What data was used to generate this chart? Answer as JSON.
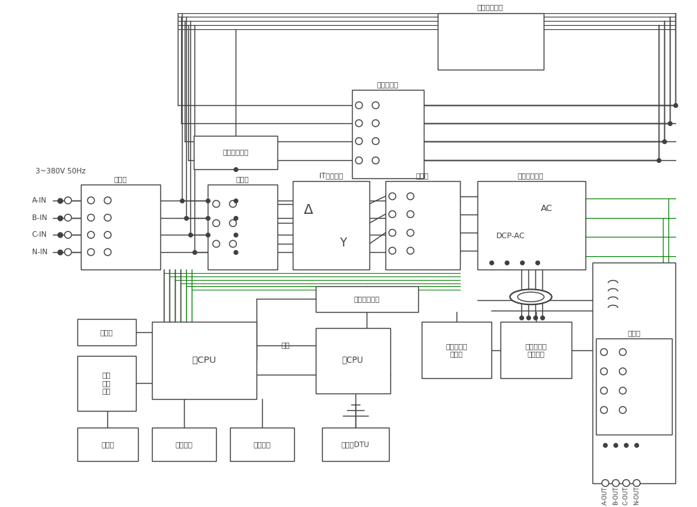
{
  "fig_w": 10.0,
  "fig_h": 7.28,
  "dpi": 100,
  "lc": "#404040",
  "glc": "#008000",
  "purple": "#800080",
  "fs": 8.5,
  "fs_small": 7.5,
  "input_labels": [
    "A-IN",
    "B-IN",
    "C-IN",
    "N-IN"
  ],
  "out_labels": [
    "N-OUT",
    "C-OUT",
    "B-OUT",
    "A-OUT"
  ]
}
